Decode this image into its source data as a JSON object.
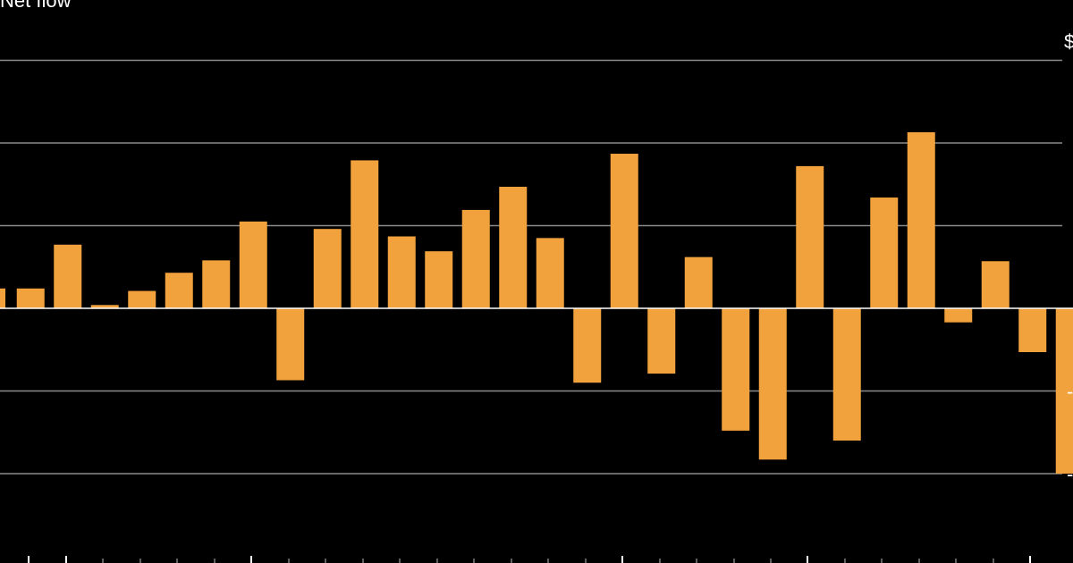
{
  "colors": {
    "background": "#000000",
    "bar": "#f2a23c",
    "grid": "#8a8a8a",
    "zero_line": "#ffffff",
    "text": "#ffffff"
  },
  "chart_data": {
    "type": "bar",
    "title": "Net flow",
    "unit_label": "$",
    "grid": true,
    "ylim": [
      -3,
      3
    ],
    "yticks": [
      -2,
      -1,
      0,
      1,
      2,
      3
    ],
    "ytick_labels": [
      "-",
      "-",
      "",
      "",
      "",
      ""
    ],
    "values": [
      0.24,
      0.77,
      0.04,
      0.21,
      0.43,
      0.58,
      1.05,
      -0.87,
      0.96,
      1.79,
      0.87,
      0.69,
      1.19,
      1.47,
      0.85,
      -0.9,
      1.87,
      -0.79,
      0.62,
      -1.48,
      -1.83,
      1.72,
      -1.6,
      1.34,
      2.13,
      -0.17,
      0.57,
      -0.53,
      -2.0
    ]
  }
}
